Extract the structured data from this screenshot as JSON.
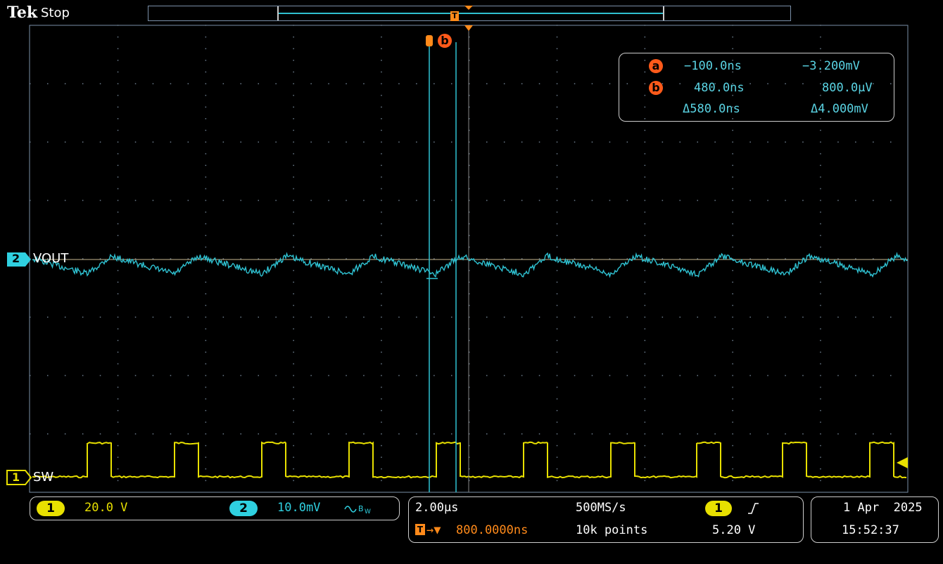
{
  "brand": "Tek",
  "acquisition_state": "Stop",
  "trigger_marker": "T",
  "cursors": {
    "a_label": "a",
    "b_label": "b",
    "a_time": "−100.0ns",
    "a_value": "−3.200mV",
    "b_time": "480.0ns",
    "b_value": "800.0µV",
    "delta_time": "Δ580.0ns",
    "delta_value": "Δ4.000mV"
  },
  "channels": {
    "ch1": {
      "number": "1",
      "label": "SW",
      "scale": "20.0 V",
      "color": "#e8e000"
    },
    "ch2": {
      "number": "2",
      "label": "VOUT",
      "scale": "10.0mV",
      "bandwidth_icon": "bandwidth-limit-icon",
      "color": "#2fd0e0"
    }
  },
  "horizontal": {
    "scale": "2.00µs",
    "sample_rate": "500MS/s",
    "record_length": "10k points",
    "trigger_position": "800.0000ns"
  },
  "trigger": {
    "source": "1",
    "slope_icon": "rising-edge-icon",
    "level": "5.20 V"
  },
  "datetime": {
    "date": "1 Apr  2025",
    "time": "15:52:37"
  }
}
